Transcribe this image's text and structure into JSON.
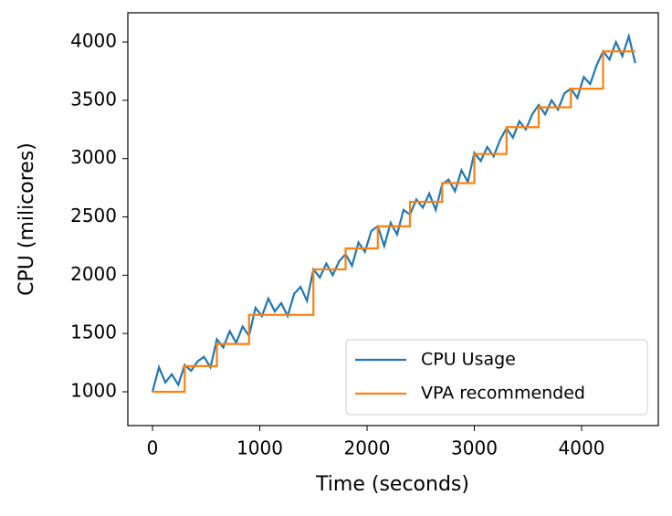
{
  "chart_data": {
    "type": "line",
    "xlabel": "Time (seconds)",
    "ylabel": "CPU (milicores)",
    "xlim": [
      -230,
      4715
    ],
    "ylim": [
      710,
      4251
    ],
    "xticks": [
      0,
      1000,
      2000,
      3000,
      4000
    ],
    "yticks": [
      1000,
      1500,
      2000,
      2500,
      3000,
      3500,
      4000
    ],
    "legend": "lower right",
    "grid": false,
    "series": [
      {
        "name": "CPU Usage",
        "color": "#1f77b4",
        "x": [
          0,
          60,
          120,
          180,
          240,
          300,
          360,
          420,
          480,
          540,
          600,
          660,
          720,
          780,
          840,
          900,
          960,
          1020,
          1080,
          1140,
          1200,
          1260,
          1320,
          1380,
          1440,
          1500,
          1560,
          1620,
          1680,
          1740,
          1800,
          1860,
          1920,
          1980,
          2040,
          2100,
          2160,
          2220,
          2280,
          2340,
          2400,
          2460,
          2520,
          2580,
          2640,
          2700,
          2760,
          2820,
          2880,
          2940,
          3000,
          3060,
          3120,
          3180,
          3240,
          3300,
          3360,
          3420,
          3480,
          3540,
          3600,
          3660,
          3720,
          3780,
          3840,
          3900,
          3960,
          4020,
          4080,
          4140,
          4200,
          4260,
          4320,
          4380,
          4440,
          4500
        ],
        "values": [
          1000,
          1210,
          1080,
          1150,
          1060,
          1230,
          1180,
          1260,
          1300,
          1210,
          1450,
          1380,
          1520,
          1420,
          1560,
          1480,
          1720,
          1650,
          1800,
          1690,
          1760,
          1650,
          1840,
          1900,
          1780,
          2050,
          1980,
          2100,
          2000,
          2120,
          2180,
          2080,
          2280,
          2200,
          2380,
          2420,
          2250,
          2450,
          2350,
          2560,
          2520,
          2650,
          2580,
          2700,
          2560,
          2780,
          2820,
          2720,
          2900,
          2800,
          3050,
          2980,
          3100,
          3020,
          3160,
          3260,
          3180,
          3320,
          3250,
          3380,
          3460,
          3380,
          3500,
          3420,
          3560,
          3600,
          3520,
          3700,
          3640,
          3800,
          3920,
          3850,
          4000,
          3880,
          4050,
          3820
        ]
      },
      {
        "name": "VPA recommended",
        "color": "#ff7f0e",
        "x": [
          0,
          300,
          300,
          600,
          600,
          900,
          900,
          1500,
          1500,
          1800,
          1800,
          2100,
          2100,
          2400,
          2400,
          2700,
          2700,
          3000,
          3000,
          3300,
          3300,
          3600,
          3600,
          3900,
          3900,
          4200,
          4200,
          4500
        ],
        "values": [
          1000,
          1000,
          1220,
          1220,
          1410,
          1410,
          1660,
          1660,
          2050,
          2050,
          2230,
          2230,
          2420,
          2420,
          2630,
          2630,
          2790,
          2790,
          3040,
          3040,
          3270,
          3270,
          3440,
          3440,
          3600,
          3600,
          3920,
          3920
        ]
      }
    ]
  }
}
